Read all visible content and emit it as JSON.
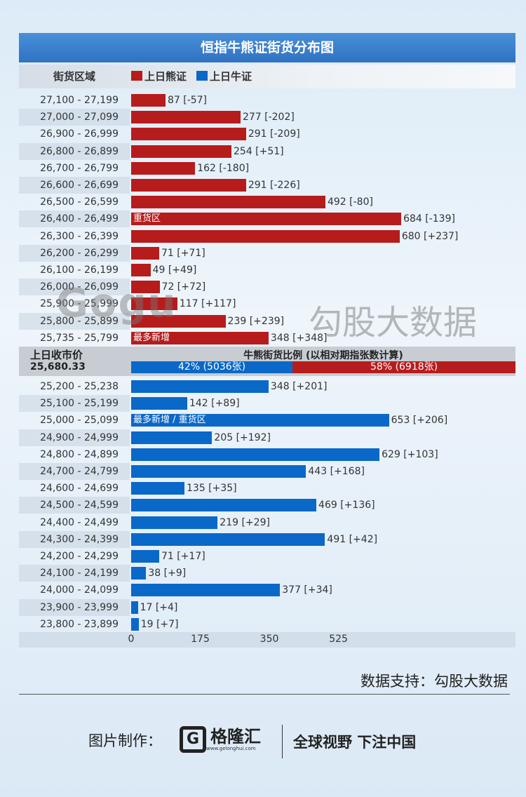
{
  "title": "恒指牛熊证街货分布图",
  "header": {
    "col1": "街货区域",
    "legend_bear": "上日熊证",
    "legend_bull": "上日牛证"
  },
  "colors": {
    "bear": "#b71c1c",
    "bull": "#0a68c8"
  },
  "middle": {
    "close_label": "上日收市价",
    "close_value": "25,680.33",
    "ratio_title": "牛熊街货比例 (以相对期指张数计算)",
    "bull_ratio_label": "42% (5036张)",
    "bear_ratio_label": "58% (6918张)",
    "bull_pct": 42,
    "bear_pct": 58
  },
  "chart_data": {
    "type": "bar",
    "title": "恒指牛熊证街货分布图",
    "xlim": [
      0,
      700
    ],
    "x_ticks": [
      "0",
      "175",
      "350",
      "525"
    ],
    "bear": [
      {
        "range": "27,100 - 27,199",
        "value": 87,
        "label": "87 [-57]"
      },
      {
        "range": "27,000 - 27,099",
        "value": 277,
        "label": "277 [-202]"
      },
      {
        "range": "26,900 - 26,999",
        "value": 291,
        "label": "291 [-209]"
      },
      {
        "range": "26,800 - 26,899",
        "value": 254,
        "label": "254 [+51]"
      },
      {
        "range": "26,700 - 26,799",
        "value": 162,
        "label": "162 [-180]"
      },
      {
        "range": "26,600 - 26,699",
        "value": 291,
        "label": "291 [-226]"
      },
      {
        "range": "26,500 - 26,599",
        "value": 492,
        "label": "492 [-80]"
      },
      {
        "range": "26,400 - 26,499",
        "value": 684,
        "label": "684 [-139]",
        "tag": "重货区"
      },
      {
        "range": "26,300 - 26,399",
        "value": 680,
        "label": "680 [+237]"
      },
      {
        "range": "26,200 - 26,299",
        "value": 71,
        "label": "71 [+71]"
      },
      {
        "range": "26,100 - 26,199",
        "value": 49,
        "label": "49 [+49]"
      },
      {
        "range": "26,000 - 26,099",
        "value": 72,
        "label": "72 [+72]"
      },
      {
        "range": "25,900 - 25,999",
        "value": 117,
        "label": "117 [+117]"
      },
      {
        "range": "25,800 - 25,899",
        "value": 239,
        "label": "239 [+239]"
      },
      {
        "range": "25,735 - 25,799",
        "value": 348,
        "label": "348 [+348]",
        "tag": "最多新增"
      }
    ],
    "bull": [
      {
        "range": "25,200 - 25,238",
        "value": 348,
        "label": "348 [+201]"
      },
      {
        "range": "25,100 - 25,199",
        "value": 142,
        "label": "142 [+89]"
      },
      {
        "range": "25,000 - 25,099",
        "value": 653,
        "label": "653 [+206]",
        "tag": "最多新增 / 重货区"
      },
      {
        "range": "24,900 - 24,999",
        "value": 205,
        "label": "205 [+192]"
      },
      {
        "range": "24,800 - 24,899",
        "value": 629,
        "label": "629 [+103]"
      },
      {
        "range": "24,700 - 24,799",
        "value": 443,
        "label": "443 [+168]"
      },
      {
        "range": "24,600 - 24,699",
        "value": 135,
        "label": "135 [+35]"
      },
      {
        "range": "24,500 - 24,599",
        "value": 469,
        "label": "469 [+136]"
      },
      {
        "range": "24,400 - 24,499",
        "value": 219,
        "label": "219 [+29]"
      },
      {
        "range": "24,300 - 24,399",
        "value": 491,
        "label": "491 [+42]"
      },
      {
        "range": "24,200 - 24,299",
        "value": 71,
        "label": "71 [+17]"
      },
      {
        "range": "24,100 - 24,199",
        "value": 38,
        "label": "38 [+9]"
      },
      {
        "range": "24,000 - 24,099",
        "value": 377,
        "label": "377 [+34]"
      },
      {
        "range": "23,900 - 23,999",
        "value": 17,
        "label": "17 [+4]"
      },
      {
        "range": "23,800 - 23,899",
        "value": 19,
        "label": "19 [+7]"
      }
    ]
  },
  "watermark": {
    "logo": "Gogu data",
    "text": "勾股大数据"
  },
  "footer": {
    "source": "数据支持：勾股大数据",
    "maker_label": "图片制作：",
    "logo_name": "格隆汇",
    "logo_url": "www.gelonghui.com",
    "slogan": "全球视野 下注中国"
  }
}
